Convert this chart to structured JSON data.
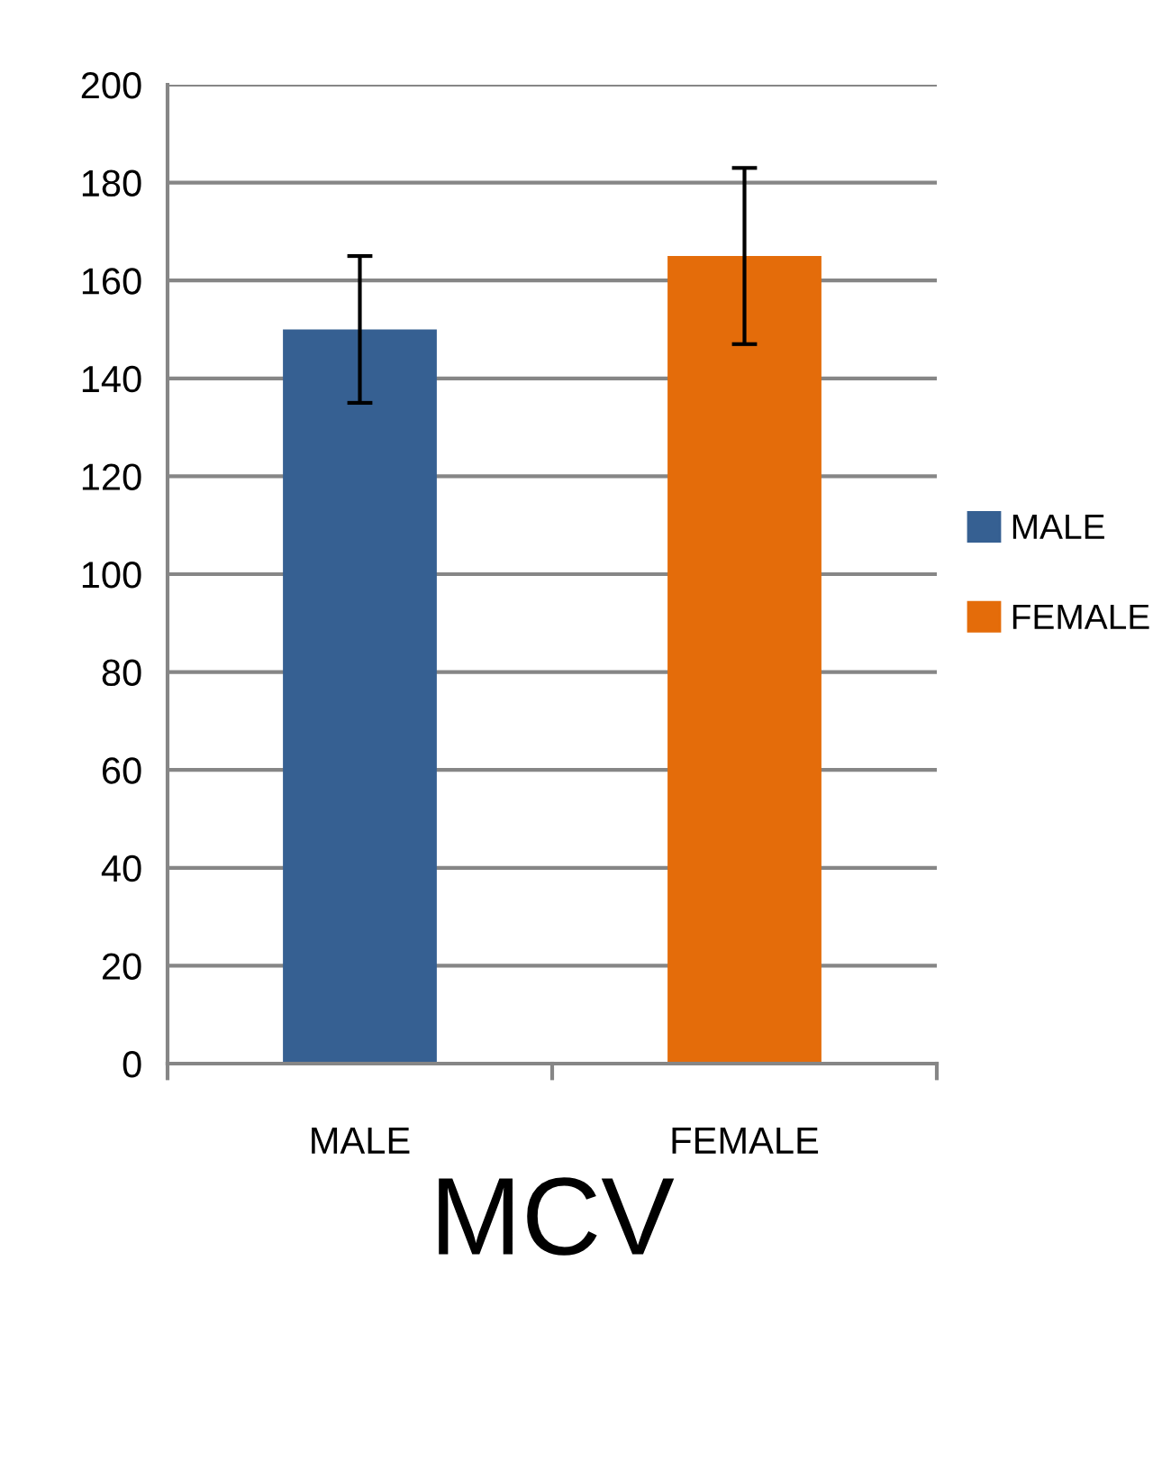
{
  "chart_data": {
    "type": "bar",
    "title": "MCV",
    "categories": [
      "MALE",
      "FEMALE"
    ],
    "series": [
      {
        "name": "MALE",
        "color": "#366092",
        "values": [
          150,
          null
        ],
        "errors": [
          15,
          null
        ]
      },
      {
        "name": "FEMALE",
        "color": "#e46c0a",
        "values": [
          null,
          165
        ],
        "errors": [
          null,
          18
        ]
      }
    ],
    "ylim": [
      0,
      200
    ],
    "yticks": [
      0,
      20,
      40,
      60,
      80,
      100,
      120,
      140,
      160,
      180,
      200
    ],
    "grid": "y",
    "legend": "right"
  }
}
